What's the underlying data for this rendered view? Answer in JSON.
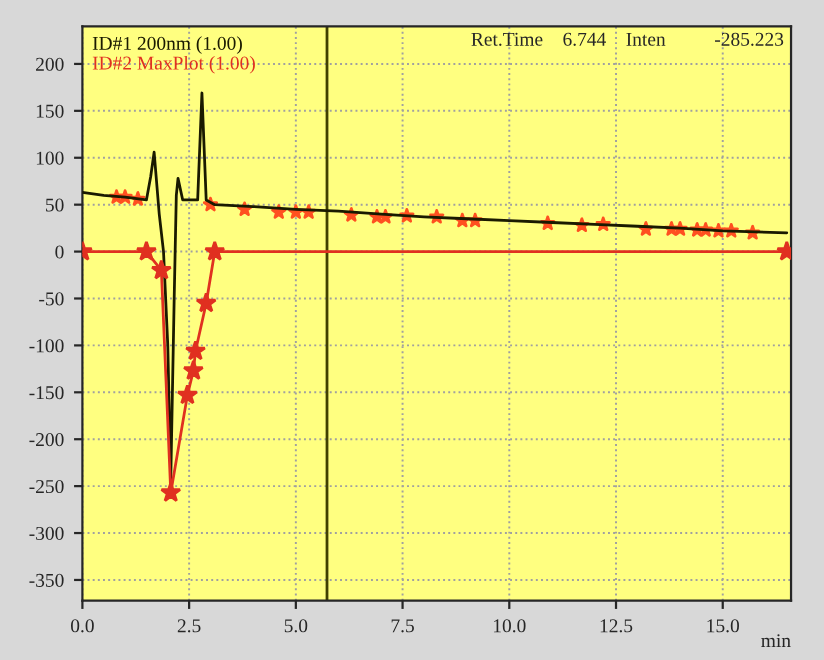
{
  "chart_data": {
    "type": "line",
    "xlabel": "min",
    "annotations": [
      "Ret.Time    6.744    Inten          -285.223"
    ],
    "x": [
      0,
      0.5,
      1.0,
      1.5,
      1.6,
      1.68,
      1.8,
      1.9,
      2.0,
      2.07,
      2.15,
      2.2,
      2.24,
      2.35,
      2.5,
      2.7,
      2.8,
      2.9,
      3.1,
      4.0,
      5.0,
      6.0,
      7.0,
      8.0,
      9.0,
      10.0,
      11.0,
      12.0,
      13.0,
      14.0,
      15.0,
      16.5
    ],
    "series": [
      {
        "name": "ID#1 200nm (1.00)",
        "color": "#1a1a00",
        "values": [
          63,
          60,
          58,
          55,
          80,
          106,
          40,
          0,
          -100,
          -243,
          -50,
          60,
          78,
          55,
          55,
          55,
          169,
          55,
          50,
          48,
          45,
          43,
          40,
          37,
          35,
          33,
          31,
          29,
          27,
          25,
          22,
          20
        ]
      },
      {
        "name": "ID#2 MaxPlot (1.00)",
        "color": "#e03020",
        "marker": "star",
        "x": [
          0,
          1.5,
          1.85,
          2.07,
          2.46,
          2.6,
          2.65,
          2.9,
          3.1,
          16.5
        ],
        "values": [
          0,
          0,
          -20,
          -257,
          -153,
          -127,
          -106,
          -55,
          0,
          0
        ]
      },
      {
        "type": "scatter",
        "color": "#ff5020",
        "marker": "star",
        "x": [
          0.8,
          1.0,
          1.3,
          3.0,
          3.8,
          4.6,
          5.0,
          5.3,
          6.3,
          6.9,
          7.1,
          7.6,
          8.3,
          8.9,
          9.2,
          10.9,
          11.7,
          12.2,
          13.2,
          13.8,
          14.0,
          14.4,
          14.6,
          14.9,
          15.2,
          15.7
        ],
        "values": [
          58,
          58,
          56,
          50,
          45,
          42,
          42,
          42,
          39,
          37,
          37,
          38,
          37,
          33,
          33,
          30,
          28,
          29,
          24,
          24,
          24,
          23,
          23,
          22,
          22,
          20
        ]
      }
    ],
    "xlim": [
      0,
      16.6
    ],
    "ylim": [
      -372,
      240
    ],
    "xticks": [
      {
        "value": 0,
        "label": "0.0"
      },
      {
        "value": 2.5,
        "label": "2.5"
      },
      {
        "value": 5,
        "label": "5.0"
      },
      {
        "value": 7.5,
        "label": "7.5"
      },
      {
        "value": 10,
        "label": "10.0"
      },
      {
        "value": 12.5,
        "label": "12.5"
      },
      {
        "value": 15,
        "label": "15.0"
      }
    ],
    "yticks": [
      -350,
      -300,
      -250,
      -200,
      -150,
      -100,
      -50,
      0,
      50,
      100,
      150,
      200
    ],
    "ref_lines": [
      {
        "axis": "x",
        "value": 5.73,
        "color": "#404000"
      }
    ],
    "grid": true,
    "legend": "top left",
    "line_style": "solid"
  }
}
